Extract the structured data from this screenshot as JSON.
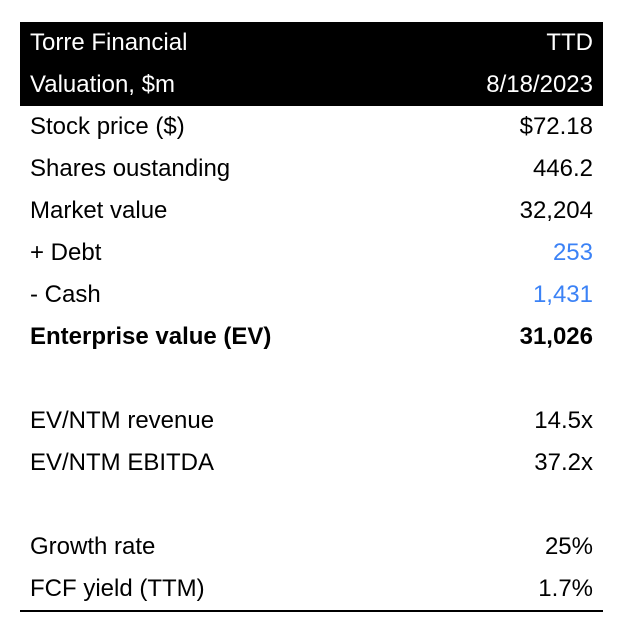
{
  "header": {
    "company": "Torre Financial",
    "ticker": "TTD",
    "subtitle": "Valuation, $m",
    "date": "8/18/2023"
  },
  "rows": {
    "stock_price": {
      "label": "Stock price ($)",
      "value": "$72.18"
    },
    "shares_outstanding": {
      "label": "Shares oustanding",
      "value": "446.2"
    },
    "market_value": {
      "label": "Market value",
      "value": "32,204"
    },
    "debt": {
      "label": "+ Debt",
      "value": "253"
    },
    "cash": {
      "label": "- Cash",
      "value": "1,431"
    },
    "enterprise_value": {
      "label": "Enterprise value (EV)",
      "value": "31,026"
    },
    "ev_ntm_revenue": {
      "label": "EV/NTM revenue",
      "value": "14.5x"
    },
    "ev_ntm_ebitda": {
      "label": "EV/NTM EBITDA",
      "value": "37.2x"
    },
    "growth_rate": {
      "label": "Growth rate",
      "value": "25%"
    },
    "fcf_yield": {
      "label": "FCF yield (TTM)",
      "value": "1.7%"
    }
  },
  "colors": {
    "header_background": "#000000",
    "header_text": "#ffffff",
    "input_value": "#3b82f6"
  }
}
